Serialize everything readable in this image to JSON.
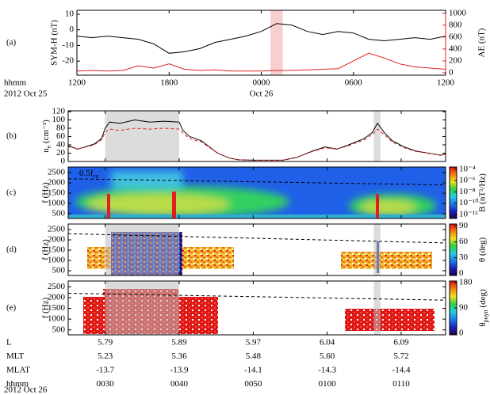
{
  "chart_data": [
    {
      "type": "line",
      "panel_label": "(a)",
      "ylabel": "SYM-H (nT)",
      "y2label": "AE (nT)",
      "x": [
        0,
        1,
        2,
        3,
        4,
        5,
        6,
        7,
        8,
        9,
        10,
        11,
        12,
        13,
        14,
        15,
        16,
        17,
        18,
        19,
        20,
        21,
        22,
        23,
        24
      ],
      "xlim": [
        0,
        24
      ],
      "xticks": [
        {
          "value": 0,
          "label": "1200"
        },
        {
          "value": 6,
          "label": "1800"
        },
        {
          "value": 12,
          "label": "0000"
        },
        {
          "value": 18,
          "label": "0600"
        },
        {
          "value": 24,
          "label": "1200"
        }
      ],
      "x_row_label": "hhmm",
      "date_labels": [
        {
          "value": 0,
          "label": "2012 Oct 25"
        },
        {
          "value": 12,
          "label": "Oct 26"
        }
      ],
      "ylim": [
        -29,
        12.5
      ],
      "yticks": [
        -20,
        -10,
        0,
        10
      ],
      "y2lim": [
        -40,
        1050
      ],
      "y2ticks": [
        0,
        200,
        400,
        600,
        800,
        1000
      ],
      "y2color": "#e02020",
      "shaded": [
        [
          12.6,
          13.4
        ]
      ],
      "shade_color": "#f8cfcf",
      "series": [
        {
          "color": "#000000",
          "values": [
            -4,
            -5,
            -4,
            -5,
            -6,
            -9,
            -15,
            -14,
            -12,
            -8,
            -6,
            -4,
            -1,
            4,
            3,
            -1,
            -3,
            -1,
            -2,
            -6,
            -7,
            -6,
            -5,
            -6,
            -4
          ]
        },
        {
          "color": "#e02020",
          "axis": "y2",
          "values": [
            30,
            40,
            30,
            40,
            120,
            80,
            150,
            60,
            40,
            50,
            30,
            30,
            30,
            40,
            40,
            50,
            60,
            70,
            200,
            330,
            250,
            150,
            100,
            80,
            60
          ]
        }
      ]
    },
    {
      "type": "line",
      "panel_label": "(b)",
      "ylabel": [
        "n",
        "e",
        " (cm⁻³)"
      ],
      "x": [
        25,
        26.3,
        28.5,
        29.5,
        30,
        30.6,
        32,
        34,
        36,
        38,
        40,
        40.5,
        41.4,
        43,
        45.2,
        46.8,
        48,
        50,
        52,
        54,
        55.9,
        58,
        59.7,
        61.3,
        62.9,
        65,
        66.1,
        66.8,
        67.7,
        68.8,
        70.4,
        72,
        73.7,
        75.3,
        76
      ],
      "xlim": [
        25,
        76
      ],
      "xticks": [
        30,
        40,
        50,
        60,
        70
      ],
      "ylim": [
        0,
        122
      ],
      "yticks": [
        0,
        20,
        40,
        60,
        80,
        100,
        120
      ],
      "shaded": [
        [
          30,
          40
        ],
        [
          66.3,
          67.2
        ]
      ],
      "shade_color": "#dcdcdc",
      "series": [
        {
          "color": "#000000",
          "values": [
            38,
            30,
            42,
            55,
            80,
            95,
            92,
            100,
            95,
            97,
            95,
            75,
            60,
            50,
            20,
            8,
            4,
            3,
            3,
            3,
            10,
            25,
            35,
            30,
            40,
            55,
            70,
            92,
            70,
            50,
            35,
            25,
            20,
            15,
            18
          ]
        },
        {
          "color": "#e02020",
          "dash": true,
          "values": [
            36,
            30,
            40,
            52,
            70,
            78,
            75,
            80,
            78,
            80,
            78,
            68,
            55,
            47,
            20,
            8,
            4,
            3,
            3,
            3,
            10,
            24,
            33,
            30,
            38,
            52,
            65,
            78,
            65,
            47,
            33,
            24,
            20,
            15,
            17
          ]
        }
      ]
    },
    {
      "type": "spectrogram",
      "panel_label": "(c)",
      "ylabel": "f (Hz)",
      "annotation": [
        "0.5f",
        "ce"
      ],
      "xlim": [
        25,
        76
      ],
      "xticks": [
        30,
        40,
        50,
        60,
        70
      ],
      "ylim": [
        270,
        2770
      ],
      "yticks": [
        500,
        1000,
        1500,
        2000,
        2500
      ],
      "dashed_line": {
        "x": [
          25,
          76
        ],
        "values": [
          2200,
          1900
        ]
      },
      "colorbar": {
        "label": "B (nT²/Hz)",
        "lim": [
          -12.7,
          -3.6
        ],
        "ticks": [
          {
            "value": -4,
            "label": "10⁻⁴"
          },
          {
            "value": -6,
            "label": "10⁻⁶"
          },
          {
            "value": -8,
            "label": "10⁻⁸"
          },
          {
            "value": -10,
            "label": "10⁻¹⁰"
          },
          {
            "value": -12,
            "label": "10⁻¹²"
          }
        ],
        "colors": [
          "#2a0050",
          "#1a20c0",
          "#1a80f0",
          "#20d0e0",
          "#30d040",
          "#f0e020",
          "#f08010",
          "#e01010"
        ]
      }
    },
    {
      "type": "spectrogram",
      "panel_label": "(d)",
      "ylabel": "f (Hz)",
      "xlim": [
        25,
        76
      ],
      "xticks": [
        30,
        40,
        50,
        60,
        70
      ],
      "ylim": [
        270,
        2770
      ],
      "yticks": [
        500,
        1000,
        1500,
        2000,
        2500
      ],
      "shaded": [
        [
          30,
          40
        ],
        [
          66.3,
          67.2
        ]
      ],
      "shade_color": "#bdbdbd",
      "dashed_line": {
        "x": [
          25,
          76
        ],
        "values": [
          2300,
          1850
        ]
      },
      "colorbar": {
        "label": "θ (deg)",
        "lim": [
          -4,
          94
        ],
        "ticks": [
          0,
          30,
          60,
          90
        ],
        "colors": [
          "#2a0050",
          "#1a20c0",
          "#1a80f0",
          "#20d0e0",
          "#30d040",
          "#f0e020",
          "#f08010",
          "#e01010"
        ]
      }
    },
    {
      "type": "spectrogram",
      "panel_label": "(e)",
      "ylabel": "f (Hz)",
      "xlim": [
        25,
        76
      ],
      "xticks": [
        30,
        40,
        50,
        60,
        70
      ],
      "ylim": [
        270,
        2770
      ],
      "yticks": [
        500,
        1000,
        1500,
        2000,
        2500
      ],
      "shaded": [
        [
          30,
          40
        ],
        [
          66.3,
          67.2
        ]
      ],
      "shade_color": "#bdbdbd",
      "dashed_line": {
        "x": [
          25,
          76
        ],
        "values": [
          2200,
          1880
        ]
      },
      "colorbar": {
        "label": [
          "θ",
          "poyn",
          " (deg)"
        ],
        "lim": [
          -5,
          185
        ],
        "ticks": [
          0,
          90,
          180
        ],
        "colors": [
          "#2a0050",
          "#1a20c0",
          "#1a80f0",
          "#20d0e0",
          "#30d040",
          "#f0e020",
          "#f08010",
          "#e01010"
        ]
      }
    }
  ],
  "ephemeris": {
    "rows": [
      {
        "label": "L",
        "values": [
          "5.79",
          "5.89",
          "5.97",
          "6.04",
          "6.09"
        ]
      },
      {
        "label": "MLT",
        "values": [
          "5.23",
          "5.36",
          "5.48",
          "5.60",
          "5.72"
        ]
      },
      {
        "label": "MLAT",
        "values": [
          "-13.7",
          "-13.9",
          "-14.1",
          "-14.3",
          "-14.4"
        ]
      },
      {
        "label": "hhmm",
        "values": [
          "0030",
          "0040",
          "0050",
          "0100",
          "0110"
        ]
      }
    ],
    "date": "2012 Oct 26"
  }
}
